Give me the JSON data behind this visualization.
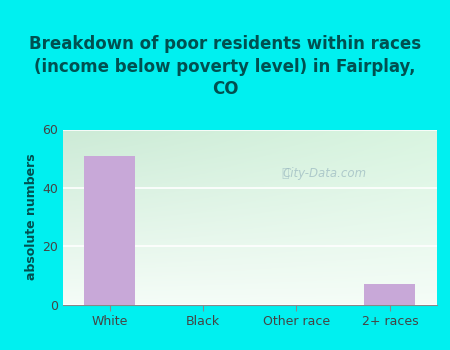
{
  "title": "Breakdown of poor residents within races\n(income below poverty level) in Fairplay,\nCO",
  "categories": [
    "White",
    "Black",
    "Other race",
    "2+ races"
  ],
  "values": [
    51,
    0,
    0,
    7
  ],
  "bar_color": "#c8a8d8",
  "ylabel": "absolute numbers",
  "ylim": [
    0,
    60
  ],
  "yticks": [
    0,
    20,
    40,
    60
  ],
  "title_bg_color": "#00f0f0",
  "plot_bg_color_topleft": "#e8f5e0",
  "plot_bg_color_topright": "#c8ecd8",
  "plot_bg_color_bottom": "#f8fdf4",
  "watermark": "City-Data.com",
  "title_color": "#005050",
  "title_fontsize": 12,
  "ylabel_color": "#005050",
  "axis_label_fontsize": 9,
  "tick_label_color": "#444444"
}
